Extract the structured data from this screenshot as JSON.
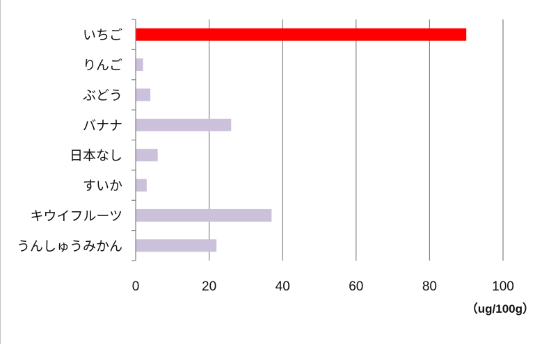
{
  "chart_data": {
    "type": "bar",
    "orientation": "horizontal",
    "categories": [
      "いちご",
      "りんご",
      "ぶどう",
      "バナナ",
      "日本なし",
      "すいか",
      "キウイフルーツ",
      "うんしゅうみかん"
    ],
    "values": [
      90,
      2,
      4,
      26,
      6,
      3,
      37,
      22
    ],
    "xlim": [
      0,
      100
    ],
    "x_ticks": [
      0,
      20,
      40,
      60,
      80,
      100
    ],
    "unit_label": "（ug/100g）",
    "grid": "vertical",
    "colors": {
      "highlight": "#ff0000",
      "default": "#ccc1da",
      "grid": "#7f7f7f",
      "axis": "#7f7f7f"
    },
    "highlight_index": 0
  }
}
